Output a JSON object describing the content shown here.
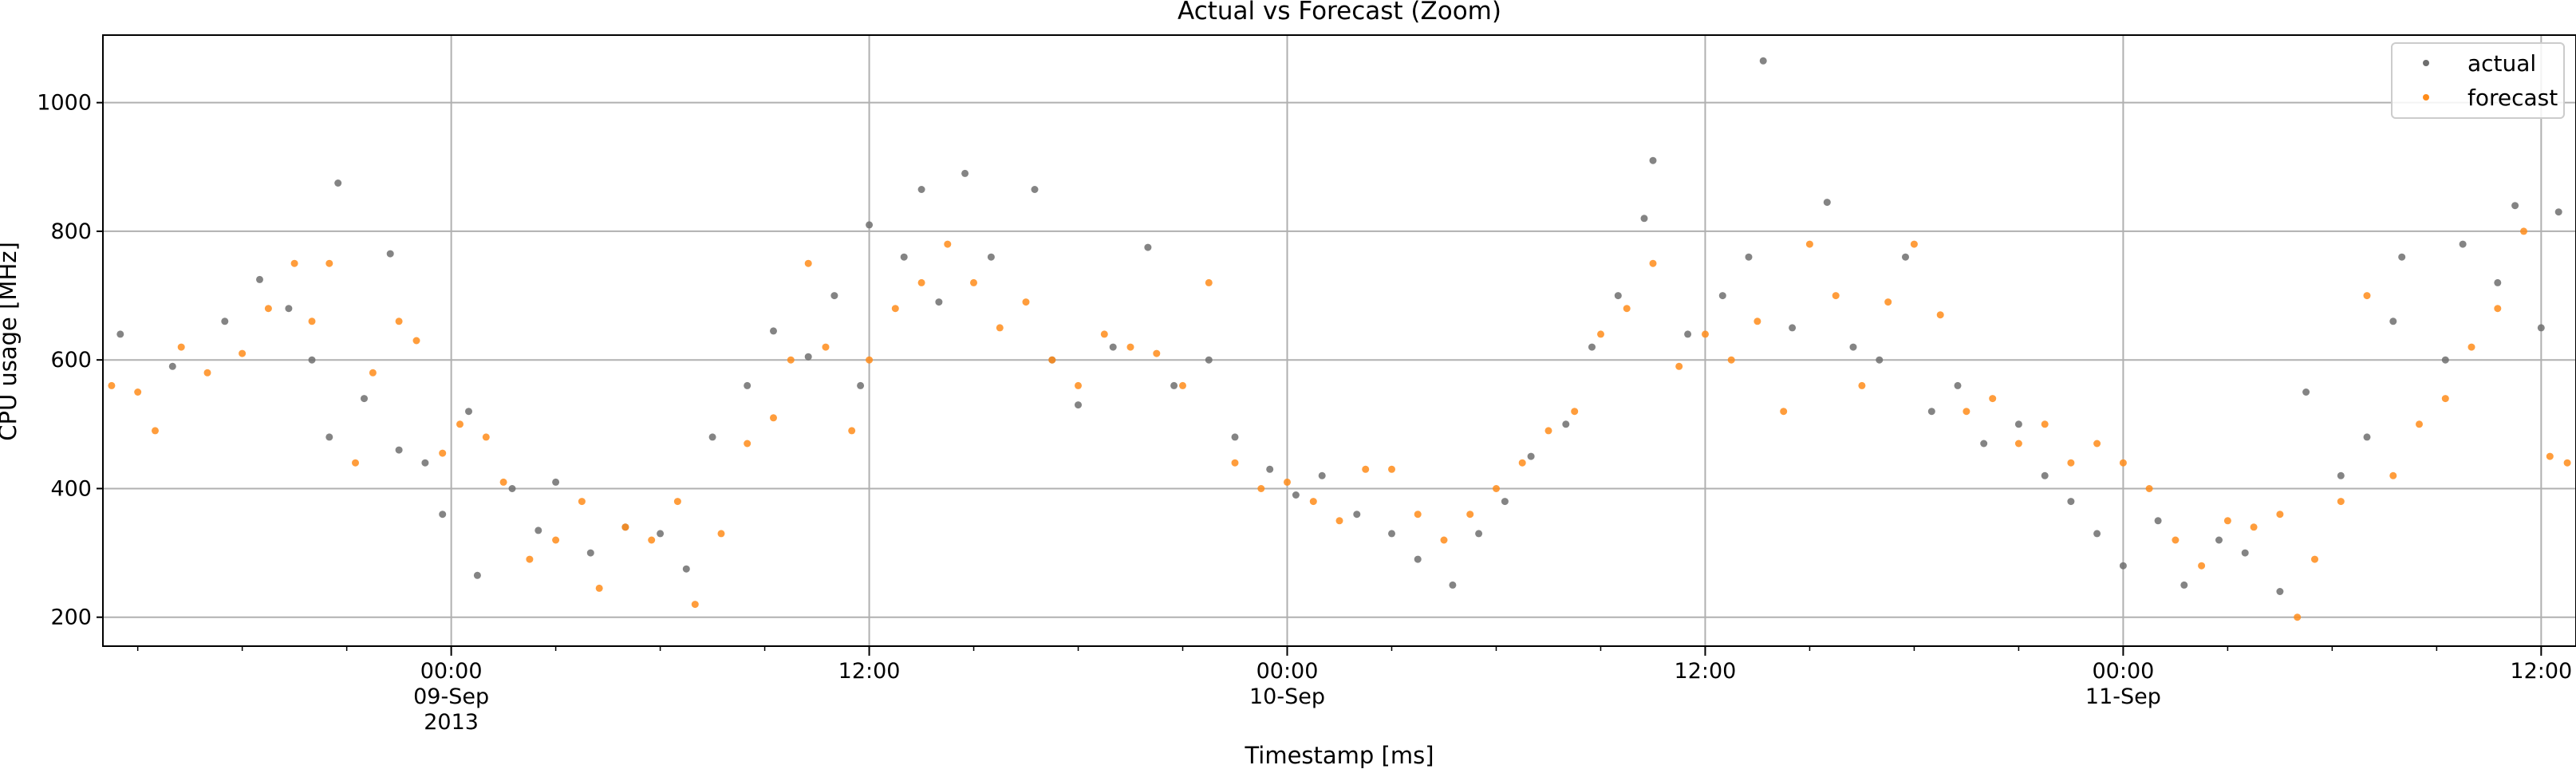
{
  "chart_data": {
    "type": "scatter",
    "title": "Actual vs Forecast (Zoom)",
    "xlabel": "Timestamp [ms]",
    "ylabel": "CPU usage [MHz]",
    "grid": true,
    "legend_position": "top-right",
    "xlim": [
      "2013-09-08 14:00",
      "2013-09-11 13:00"
    ],
    "ylim": [
      155,
      1105
    ],
    "x_ticks": [
      {
        "at": "2013-09-09 00:00",
        "lines": [
          "00:00",
          "09-Sep",
          "2013"
        ]
      },
      {
        "at": "2013-09-09 12:00",
        "lines": [
          "12:00"
        ]
      },
      {
        "at": "2013-09-10 00:00",
        "lines": [
          "00:00",
          "10-Sep"
        ]
      },
      {
        "at": "2013-09-10 12:00",
        "lines": [
          "12:00"
        ]
      },
      {
        "at": "2013-09-11 00:00",
        "lines": [
          "00:00",
          "11-Sep"
        ]
      },
      {
        "at": "2013-09-11 12:00",
        "lines": [
          "12:00"
        ]
      }
    ],
    "y_ticks": [
      200,
      400,
      600,
      800,
      1000
    ],
    "series": [
      {
        "name": "actual",
        "color": "#6e6e6e",
        "points": [
          [
            "2013-09-08 14:30",
            640
          ],
          [
            "2013-09-08 16:00",
            590
          ],
          [
            "2013-09-08 17:30",
            660
          ],
          [
            "2013-09-08 18:30",
            725
          ],
          [
            "2013-09-08 19:20",
            680
          ],
          [
            "2013-09-08 20:00",
            600
          ],
          [
            "2013-09-08 20:30",
            480
          ],
          [
            "2013-09-08 20:45",
            875
          ],
          [
            "2013-09-08 21:30",
            540
          ],
          [
            "2013-09-08 22:15",
            765
          ],
          [
            "2013-09-08 22:30",
            460
          ],
          [
            "2013-09-08 23:15",
            440
          ],
          [
            "2013-09-08 23:45",
            360
          ],
          [
            "2013-09-09 00:30",
            520
          ],
          [
            "2013-09-09 00:45",
            265
          ],
          [
            "2013-09-09 01:45",
            400
          ],
          [
            "2013-09-09 02:30",
            335
          ],
          [
            "2013-09-09 03:00",
            410
          ],
          [
            "2013-09-09 04:00",
            300
          ],
          [
            "2013-09-09 05:00",
            340
          ],
          [
            "2013-09-09 06:00",
            330
          ],
          [
            "2013-09-09 06:45",
            275
          ],
          [
            "2013-09-09 07:30",
            480
          ],
          [
            "2013-09-09 08:30",
            560
          ],
          [
            "2013-09-09 09:15",
            645
          ],
          [
            "2013-09-09 10:15",
            605
          ],
          [
            "2013-09-09 11:00",
            700
          ],
          [
            "2013-09-09 11:45",
            560
          ],
          [
            "2013-09-09 12:00",
            810
          ],
          [
            "2013-09-09 13:00",
            760
          ],
          [
            "2013-09-09 13:30",
            865
          ],
          [
            "2013-09-09 14:00",
            690
          ],
          [
            "2013-09-09 14:45",
            890
          ],
          [
            "2013-09-09 15:30",
            760
          ],
          [
            "2013-09-09 16:45",
            865
          ],
          [
            "2013-09-09 17:15",
            600
          ],
          [
            "2013-09-09 18:00",
            530
          ],
          [
            "2013-09-09 19:00",
            620
          ],
          [
            "2013-09-09 20:00",
            775
          ],
          [
            "2013-09-09 20:45",
            560
          ],
          [
            "2013-09-09 21:45",
            600
          ],
          [
            "2013-09-09 22:30",
            480
          ],
          [
            "2013-09-09 23:30",
            430
          ],
          [
            "2013-09-10 00:15",
            390
          ],
          [
            "2013-09-10 01:00",
            420
          ],
          [
            "2013-09-10 02:00",
            360
          ],
          [
            "2013-09-10 03:00",
            330
          ],
          [
            "2013-09-10 03:45",
            290
          ],
          [
            "2013-09-10 04:45",
            250
          ],
          [
            "2013-09-10 05:30",
            330
          ],
          [
            "2013-09-10 06:15",
            380
          ],
          [
            "2013-09-10 07:00",
            450
          ],
          [
            "2013-09-10 08:00",
            500
          ],
          [
            "2013-09-10 08:45",
            620
          ],
          [
            "2013-09-10 09:30",
            700
          ],
          [
            "2013-09-10 10:15",
            820
          ],
          [
            "2013-09-10 10:30",
            910
          ],
          [
            "2013-09-10 11:30",
            640
          ],
          [
            "2013-09-10 12:30",
            700
          ],
          [
            "2013-09-10 13:15",
            760
          ],
          [
            "2013-09-10 13:40",
            1065
          ],
          [
            "2013-09-10 14:30",
            650
          ],
          [
            "2013-09-10 15:30",
            845
          ],
          [
            "2013-09-10 16:15",
            620
          ],
          [
            "2013-09-10 17:00",
            600
          ],
          [
            "2013-09-10 17:45",
            760
          ],
          [
            "2013-09-10 18:30",
            520
          ],
          [
            "2013-09-10 19:15",
            560
          ],
          [
            "2013-09-10 20:00",
            470
          ],
          [
            "2013-09-10 21:00",
            500
          ],
          [
            "2013-09-10 21:45",
            420
          ],
          [
            "2013-09-10 22:30",
            380
          ],
          [
            "2013-09-10 23:15",
            330
          ],
          [
            "2013-09-11 00:00",
            280
          ],
          [
            "2013-09-11 01:00",
            350
          ],
          [
            "2013-09-11 01:45",
            250
          ],
          [
            "2013-09-11 02:45",
            320
          ],
          [
            "2013-09-11 03:30",
            300
          ],
          [
            "2013-09-11 04:30",
            240
          ],
          [
            "2013-09-11 05:15",
            550
          ],
          [
            "2013-09-11 06:15",
            420
          ],
          [
            "2013-09-11 07:00",
            480
          ],
          [
            "2013-09-11 07:45",
            660
          ],
          [
            "2013-09-11 08:00",
            760
          ],
          [
            "2013-09-11 09:15",
            600
          ],
          [
            "2013-09-11 09:45",
            780
          ],
          [
            "2013-09-11 10:45",
            720
          ],
          [
            "2013-09-11 11:15",
            840
          ],
          [
            "2013-09-11 12:00",
            650
          ],
          [
            "2013-09-11 12:30",
            830
          ]
        ]
      },
      {
        "name": "forecast",
        "color": "#ff8c1a",
        "points": [
          [
            "2013-09-08 14:15",
            560
          ],
          [
            "2013-09-08 15:00",
            550
          ],
          [
            "2013-09-08 15:30",
            490
          ],
          [
            "2013-09-08 16:15",
            620
          ],
          [
            "2013-09-08 17:00",
            580
          ],
          [
            "2013-09-08 18:00",
            610
          ],
          [
            "2013-09-08 18:45",
            680
          ],
          [
            "2013-09-08 19:30",
            750
          ],
          [
            "2013-09-08 20:00",
            660
          ],
          [
            "2013-09-08 20:30",
            750
          ],
          [
            "2013-09-08 21:15",
            440
          ],
          [
            "2013-09-08 21:45",
            580
          ],
          [
            "2013-09-08 22:30",
            660
          ],
          [
            "2013-09-08 23:00",
            630
          ],
          [
            "2013-09-08 23:45",
            455
          ],
          [
            "2013-09-09 00:15",
            500
          ],
          [
            "2013-09-09 01:00",
            480
          ],
          [
            "2013-09-09 01:30",
            410
          ],
          [
            "2013-09-09 02:15",
            290
          ],
          [
            "2013-09-09 03:00",
            320
          ],
          [
            "2013-09-09 03:45",
            380
          ],
          [
            "2013-09-09 04:15",
            245
          ],
          [
            "2013-09-09 05:00",
            340
          ],
          [
            "2013-09-09 05:45",
            320
          ],
          [
            "2013-09-09 06:30",
            380
          ],
          [
            "2013-09-09 07:00",
            220
          ],
          [
            "2013-09-09 07:45",
            330
          ],
          [
            "2013-09-09 08:30",
            470
          ],
          [
            "2013-09-09 09:15",
            510
          ],
          [
            "2013-09-09 09:45",
            600
          ],
          [
            "2013-09-09 10:15",
            750
          ],
          [
            "2013-09-09 10:45",
            620
          ],
          [
            "2013-09-09 11:30",
            490
          ],
          [
            "2013-09-09 12:00",
            600
          ],
          [
            "2013-09-09 12:45",
            680
          ],
          [
            "2013-09-09 13:30",
            720
          ],
          [
            "2013-09-09 14:15",
            780
          ],
          [
            "2013-09-09 15:00",
            720
          ],
          [
            "2013-09-09 15:45",
            650
          ],
          [
            "2013-09-09 16:30",
            690
          ],
          [
            "2013-09-09 17:15",
            600
          ],
          [
            "2013-09-09 18:00",
            560
          ],
          [
            "2013-09-09 18:45",
            640
          ],
          [
            "2013-09-09 19:30",
            620
          ],
          [
            "2013-09-09 20:15",
            610
          ],
          [
            "2013-09-09 21:00",
            560
          ],
          [
            "2013-09-09 21:45",
            720
          ],
          [
            "2013-09-09 22:30",
            440
          ],
          [
            "2013-09-09 23:15",
            400
          ],
          [
            "2013-09-10 00:00",
            410
          ],
          [
            "2013-09-10 00:45",
            380
          ],
          [
            "2013-09-10 01:30",
            350
          ],
          [
            "2013-09-10 02:15",
            430
          ],
          [
            "2013-09-10 03:00",
            430
          ],
          [
            "2013-09-10 03:45",
            360
          ],
          [
            "2013-09-10 04:30",
            320
          ],
          [
            "2013-09-10 05:15",
            360
          ],
          [
            "2013-09-10 06:00",
            400
          ],
          [
            "2013-09-10 06:45",
            440
          ],
          [
            "2013-09-10 07:30",
            490
          ],
          [
            "2013-09-10 08:15",
            520
          ],
          [
            "2013-09-10 09:00",
            640
          ],
          [
            "2013-09-10 09:45",
            680
          ],
          [
            "2013-09-10 10:30",
            750
          ],
          [
            "2013-09-10 11:15",
            590
          ],
          [
            "2013-09-10 12:00",
            640
          ],
          [
            "2013-09-10 12:45",
            600
          ],
          [
            "2013-09-10 13:30",
            660
          ],
          [
            "2013-09-10 14:15",
            520
          ],
          [
            "2013-09-10 15:00",
            780
          ],
          [
            "2013-09-10 15:45",
            700
          ],
          [
            "2013-09-10 16:30",
            560
          ],
          [
            "2013-09-10 17:15",
            690
          ],
          [
            "2013-09-10 18:00",
            780
          ],
          [
            "2013-09-10 18:45",
            670
          ],
          [
            "2013-09-10 19:30",
            520
          ],
          [
            "2013-09-10 20:15",
            540
          ],
          [
            "2013-09-10 21:00",
            470
          ],
          [
            "2013-09-10 21:45",
            500
          ],
          [
            "2013-09-10 22:30",
            440
          ],
          [
            "2013-09-10 23:15",
            470
          ],
          [
            "2013-09-11 00:00",
            440
          ],
          [
            "2013-09-11 00:45",
            400
          ],
          [
            "2013-09-11 01:30",
            320
          ],
          [
            "2013-09-11 02:15",
            280
          ],
          [
            "2013-09-11 03:00",
            350
          ],
          [
            "2013-09-11 03:45",
            340
          ],
          [
            "2013-09-11 04:30",
            360
          ],
          [
            "2013-09-11 05:00",
            200
          ],
          [
            "2013-09-11 05:30",
            290
          ],
          [
            "2013-09-11 06:15",
            380
          ],
          [
            "2013-09-11 07:00",
            700
          ],
          [
            "2013-09-11 07:45",
            420
          ],
          [
            "2013-09-11 08:30",
            500
          ],
          [
            "2013-09-11 09:15",
            540
          ],
          [
            "2013-09-11 10:00",
            620
          ],
          [
            "2013-09-11 10:45",
            680
          ],
          [
            "2013-09-11 11:30",
            800
          ],
          [
            "2013-09-11 12:15",
            450
          ],
          [
            "2013-09-11 12:45",
            440
          ]
        ]
      }
    ]
  }
}
